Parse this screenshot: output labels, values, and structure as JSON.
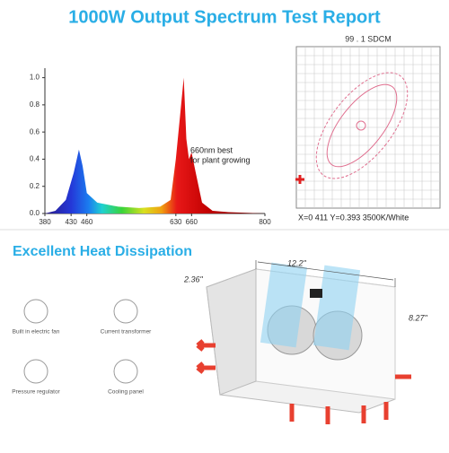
{
  "title": "1000W Output Spectrum Test Report",
  "chart_data": {
    "type": "area",
    "x": [
      380,
      400,
      420,
      435,
      445,
      452,
      460,
      480,
      520,
      560,
      600,
      620,
      630,
      640,
      645,
      650,
      655,
      660,
      668,
      680,
      700,
      730,
      800
    ],
    "values": [
      0,
      0.02,
      0.1,
      0.3,
      0.47,
      0.35,
      0.15,
      0.08,
      0.05,
      0.04,
      0.05,
      0.1,
      0.4,
      0.8,
      1.0,
      0.55,
      0.4,
      0.45,
      0.3,
      0.08,
      0.02,
      0.01,
      0
    ],
    "xlim": [
      380,
      800
    ],
    "xticks": [
      380,
      430,
      460,
      630,
      660,
      800
    ],
    "ylim": [
      0,
      1.07
    ],
    "yticks": [
      {
        "value": 0,
        "label": "0.0"
      },
      0.2,
      0.4,
      0.6,
      0.8,
      {
        "value": 1,
        "label": "1.0"
      }
    ],
    "annotation": [
      "660nm best",
      "for plant growing"
    ]
  },
  "sdcm": {
    "title": "99 . 1 SDCM",
    "caption": "X=0 411 Y=0.393 3500K/White"
  },
  "heat": {
    "title": "Excellent Heat Dissipation",
    "features": [
      "Built in electric fan",
      "Current transformer",
      "Pressure regulator",
      "Cooling panel"
    ],
    "dimensions": [
      "12.2\"",
      "2.36\"",
      "8.27\""
    ]
  }
}
